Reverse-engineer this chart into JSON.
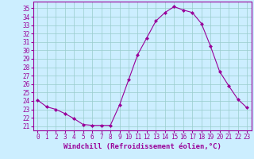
{
  "x": [
    0,
    1,
    2,
    3,
    4,
    5,
    6,
    7,
    8,
    9,
    10,
    11,
    12,
    13,
    14,
    15,
    16,
    17,
    18,
    19,
    20,
    21,
    22,
    23
  ],
  "y": [
    24.1,
    23.3,
    23.0,
    22.5,
    21.9,
    21.2,
    21.1,
    21.1,
    21.1,
    23.5,
    26.5,
    29.5,
    31.5,
    33.5,
    34.5,
    35.2,
    34.8,
    34.5,
    33.2,
    30.5,
    27.5,
    25.8,
    24.2,
    23.2
  ],
  "line_color": "#990099",
  "marker": "D",
  "marker_size": 2,
  "bg_color": "#cceeff",
  "grid_color": "#99cccc",
  "ylabel_ticks": [
    21,
    22,
    23,
    24,
    25,
    26,
    27,
    28,
    29,
    30,
    31,
    32,
    33,
    34,
    35
  ],
  "xlabel": "Windchill (Refroidissement éolien,°C)",
  "xlabel_color": "#990099",
  "tick_color": "#990099",
  "ylim": [
    20.5,
    35.8
  ],
  "xlim": [
    -0.5,
    23.5
  ],
  "fig_bg": "#cceeff",
  "spine_color": "#990099",
  "tick_fontsize": 5.5,
  "xlabel_fontsize": 6.5
}
